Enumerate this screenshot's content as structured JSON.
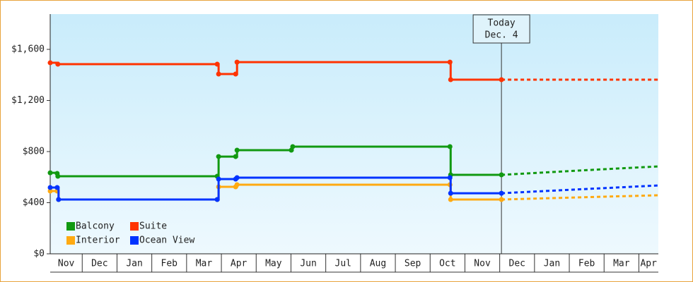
{
  "chart_data": {
    "type": "step-line",
    "annotation": {
      "x": 13.05,
      "lines": [
        "Today",
        "Dec. 4"
      ]
    },
    "xlim": [
      0.08,
      17.56
    ],
    "xticks": [
      {
        "value": 0,
        "label": "Nov"
      },
      {
        "value": 1,
        "label": "Dec"
      },
      {
        "value": 2,
        "label": "Jan"
      },
      {
        "value": 3,
        "label": "Feb"
      },
      {
        "value": 4,
        "label": "Mar"
      },
      {
        "value": 5,
        "label": "Apr"
      },
      {
        "value": 6,
        "label": "May"
      },
      {
        "value": 7,
        "label": "Jun"
      },
      {
        "value": 8,
        "label": "Jul"
      },
      {
        "value": 9,
        "label": "Aug"
      },
      {
        "value": 10,
        "label": "Sep"
      },
      {
        "value": 11,
        "label": "Oct"
      },
      {
        "value": 12,
        "label": "Nov"
      },
      {
        "value": 13,
        "label": "Dec"
      },
      {
        "value": 14,
        "label": "Jan"
      },
      {
        "value": 15,
        "label": "Feb"
      },
      {
        "value": 16,
        "label": "Mar"
      },
      {
        "value": 17,
        "label": "Apr"
      }
    ],
    "ylim": [
      0,
      1876
    ],
    "yticks": [
      {
        "value": 0,
        "label": "$0"
      },
      {
        "value": 400,
        "label": "$400"
      },
      {
        "value": 800,
        "label": "$800"
      },
      {
        "value": 1200,
        "label": "$1,200"
      },
      {
        "value": 1600,
        "label": "$1,600"
      }
    ],
    "legend": "lower-left",
    "series": [
      {
        "name": "Balcony",
        "color": "#119911",
        "x": [
          0.08,
          0.28,
          0.3,
          4.88,
          4.92,
          5.41,
          5.45,
          7.01,
          7.05,
          11.57,
          11.59,
          13.05
        ],
        "values": [
          634,
          629,
          607,
          607,
          761,
          761,
          811,
          811,
          839,
          839,
          618,
          618
        ],
        "forecast": {
          "x": [
            13.05,
            14.5,
            16,
            17.56
          ],
          "values": [
            618,
            640,
            662,
            684
          ]
        }
      },
      {
        "name": "Suite",
        "color": "#ff3300",
        "x": [
          0.08,
          0.3,
          4.88,
          4.92,
          5.41,
          5.45,
          11.57,
          11.59,
          13.05
        ],
        "values": [
          1495,
          1484,
          1484,
          1407,
          1407,
          1500,
          1500,
          1363,
          1363
        ],
        "forecast": {
          "x": [
            13.05,
            17.56
          ],
          "values": [
            1363,
            1363
          ]
        }
      },
      {
        "name": "Interior",
        "color": "#ffaa11",
        "x": [
          0.08,
          0.28,
          0.32,
          4.88,
          4.92,
          5.41,
          5.45,
          11.57,
          11.59,
          13.05
        ],
        "values": [
          491,
          491,
          425,
          425,
          524,
          524,
          541,
          541,
          425,
          425
        ],
        "forecast": {
          "x": [
            13.05,
            14.5,
            16,
            17.56
          ],
          "values": [
            425,
            436,
            447,
            458
          ]
        }
      },
      {
        "name": "Ocean View",
        "color": "#0033ff",
        "x": [
          0.08,
          0.28,
          0.32,
          4.88,
          4.92,
          5.41,
          5.45,
          11.57,
          11.59,
          13.05
        ],
        "values": [
          519,
          519,
          425,
          425,
          585,
          585,
          596,
          596,
          474,
          474
        ],
        "forecast": {
          "x": [
            13.05,
            14.5,
            16,
            17.56
          ],
          "values": [
            474,
            494,
            514,
            535
          ]
        }
      }
    ]
  }
}
